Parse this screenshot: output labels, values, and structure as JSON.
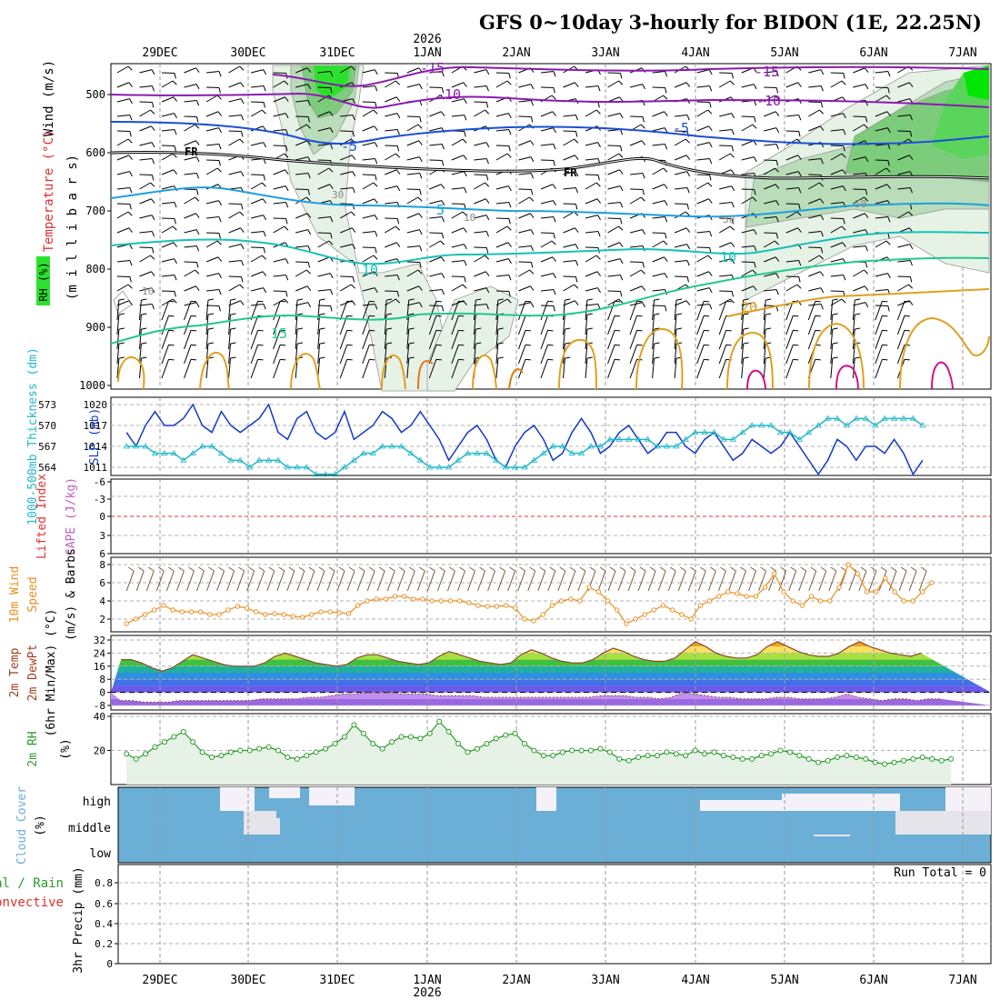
{
  "title": "GFS 0~10day 3-hourly for BIDON (1E, 22.25N)",
  "year_label": "2026",
  "date_labels": [
    "29DEC",
    "30DEC",
    "31DEC",
    "1JAN",
    "2JAN",
    "3JAN",
    "4JAN",
    "5JAN",
    "6JAN",
    "7JAN"
  ],
  "colors": {
    "temp_purple": "#8a1ab0",
    "temp_blue": "#1c4fd6",
    "temp_lightblue": "#1ca0e0",
    "temp_teal": "#18c0b8",
    "temp_green": "#20c890",
    "temp_orange": "#e0a020",
    "temp_darkorange": "#e07a10",
    "temp_magenta": "#d0108a",
    "rh_green": "#00e000",
    "slp_blue": "#1438c8",
    "thickness_cyan": "#22b8c8",
    "wind_orange": "#e89020",
    "rh2m_green": "#2a9a2a",
    "cloud_blue": "#6baed6",
    "lifted_red": "#e03030",
    "cape_violet": "#c060c0"
  },
  "panels": {
    "upper_air": {
      "axis_labels": {
        "wind": "Wind (m/s)",
        "temperature": "Temperature (°C)",
        "rh": "RH (%)",
        "millibars": "(m i l l i b a r s)"
      },
      "pressure_ticks": [
        "500",
        "600",
        "700",
        "800",
        "900",
        "1000"
      ],
      "contour_labels": [
        "-15",
        "-10",
        "-5",
        "FR",
        "5",
        "10",
        "15",
        "20",
        "-15",
        "-10",
        "-5",
        "FR",
        "10",
        "30",
        "50",
        "30",
        "10",
        "10"
      ]
    },
    "slp_thickness": {
      "thickness_label": "1000-500mb Thickness (dm)",
      "slp_label": "SLP (mb)",
      "thickness_ticks": [
        "573",
        "570",
        "567",
        "564"
      ],
      "slp_ticks": [
        "1020",
        "1017",
        "1014",
        "1011"
      ]
    },
    "cape_li": {
      "li_label": "Lifted Index",
      "cape_label": "CAPE (J/kg)",
      "ticks": [
        "-6",
        "-3",
        "0",
        "3",
        "6"
      ]
    },
    "wind10m": {
      "label_line1": "10m Wind",
      "label_line2": "Speed",
      "label_line3": "(m/s) & Barbs",
      "ticks": [
        "8",
        "6",
        "4",
        "2"
      ]
    },
    "temp2m": {
      "label_line1": "2m Temp",
      "label_line2": "2m DewPt",
      "label_line3": "(6hr Min/Max) (°C)",
      "ticks": [
        "32",
        "24",
        "16",
        "8",
        "0",
        "-8"
      ]
    },
    "rh2m": {
      "label_line1": "2m RH",
      "label_line2": "(%)",
      "ticks": [
        "40",
        "20"
      ]
    },
    "cloud": {
      "label_line1": "Cloud Cover",
      "label_line2": "(%)",
      "levels": [
        "high",
        "middle",
        "low"
      ]
    },
    "precip": {
      "label_line1": "Total / Rain",
      "label_line2": "Convective",
      "axis_label": "3hr Precip (mm)",
      "run_total": "Run Total = 0",
      "ticks": [
        "0.8",
        "0.6",
        "0.4",
        "0.2",
        "0"
      ]
    }
  },
  "chart_data": [
    {
      "type": "line",
      "name": "slp_thickness",
      "x_unit": "3-hourly steps (0 = 28DEC 12Z, 8 steps per day)",
      "series": [
        {
          "name": "SLP (mb)",
          "values": [
            1016,
            1014,
            1017,
            1019,
            1017,
            1017,
            1018,
            1020,
            1017,
            1016,
            1019,
            1017,
            1016,
            1017,
            1018,
            1020,
            1016,
            1015,
            1018,
            1019,
            1016,
            1015,
            1016,
            1019,
            1015,
            1016,
            1017,
            1019,
            1018,
            1016,
            1017,
            1019,
            1017,
            1015,
            1012,
            1014,
            1016,
            1017,
            1015,
            1012,
            1011,
            1014,
            1016,
            1017,
            1015,
            1012,
            1013,
            1016,
            1018,
            1016,
            1013,
            1014,
            1016,
            1017,
            1015,
            1013,
            1014,
            1016,
            1016,
            1014,
            1013,
            1015,
            1016,
            1014,
            1012,
            1013,
            1015,
            1014,
            1013,
            1014,
            1016,
            1014,
            1012,
            1010,
            1012,
            1015,
            1014,
            1012,
            1014,
            1014,
            1013,
            1015,
            1013,
            1010,
            1012
          ]
        },
        {
          "name": "1000-500mb Thickness (dm)",
          "values": [
            567,
            567,
            567,
            566,
            566,
            566,
            565,
            566,
            567,
            567,
            566,
            565,
            565,
            564,
            565,
            565,
            565,
            564,
            564,
            564,
            563,
            563,
            563,
            564,
            565,
            566,
            566,
            567,
            567,
            567,
            566,
            565,
            564,
            564,
            564,
            565,
            566,
            566,
            566,
            565,
            564,
            564,
            564,
            565,
            566,
            567,
            567,
            566,
            566,
            567,
            567,
            568,
            568,
            568,
            568,
            568,
            567,
            567,
            567,
            568,
            569,
            569,
            569,
            568,
            568,
            569,
            570,
            570,
            570,
            569,
            569,
            568,
            569,
            570,
            571,
            571,
            570,
            571,
            571,
            570,
            571,
            571,
            571,
            571,
            570
          ]
        }
      ]
    },
    {
      "type": "line",
      "name": "wind10m_speed",
      "series": [
        {
          "name": "10m Wind Speed (m/s)",
          "values": [
            1.5,
            2,
            2.5,
            3,
            3.5,
            3,
            2.8,
            2.8,
            2.8,
            2.5,
            2.5,
            3,
            3.4,
            3.2,
            2.8,
            2.5,
            2.6,
            2.5,
            2.3,
            2.2,
            2.5,
            2.8,
            2.8,
            2.7,
            2.6,
            3.5,
            4,
            4.2,
            4.2,
            4.5,
            4.5,
            4.2,
            4.2,
            4,
            4,
            4,
            4,
            3.8,
            3.5,
            3.4,
            3.4,
            3.5,
            3.2,
            2,
            1.8,
            2.5,
            3.5,
            4,
            4.2,
            4,
            5.5,
            5,
            4,
            3,
            1.5,
            2,
            2.5,
            3,
            3.5,
            3,
            2.5,
            2,
            3.5,
            4,
            4.5,
            5,
            4.8,
            4.5,
            4.5,
            5.5,
            7,
            5,
            4,
            3.5,
            4.5,
            4,
            4,
            5.5,
            8,
            7,
            5,
            5,
            6.5,
            5,
            4,
            4,
            5,
            6
          ]
        }
      ]
    },
    {
      "type": "area",
      "name": "temp2m",
      "series": [
        {
          "name": "2m Temp (°C)",
          "values": [
            20,
            20,
            18,
            15,
            13,
            15,
            19,
            23,
            21,
            19,
            17,
            16,
            16,
            16,
            18,
            22,
            24,
            22,
            20,
            18,
            17,
            16,
            17,
            21,
            23,
            23,
            21,
            19,
            18,
            17,
            18,
            22,
            25,
            23,
            21,
            19,
            18,
            17,
            18,
            23,
            26,
            24,
            21,
            19,
            18,
            18,
            20,
            24,
            27,
            25,
            22,
            20,
            19,
            19,
            21,
            26,
            31,
            28,
            24,
            22,
            21,
            21,
            23,
            28,
            31,
            28,
            25,
            23,
            22,
            22,
            24,
            28,
            31,
            28,
            26,
            24,
            23,
            22,
            24
          ]
        },
        {
          "name": "2m DewPt (°C)",
          "values": [
            -5,
            -5,
            -6,
            -6,
            -6,
            -5,
            -5,
            -5,
            -5,
            -5,
            -5,
            -5,
            -4,
            -4,
            -4,
            -4,
            -3,
            -3,
            -2,
            -1,
            -1,
            0,
            0,
            0,
            -1,
            -1,
            -1,
            -2,
            -2,
            -2,
            -2,
            -3,
            -3,
            -3,
            -3,
            -3,
            -3,
            -3,
            -3,
            -3,
            -3,
            -2,
            -2,
            -2,
            -3,
            -3,
            -4,
            -3,
            0,
            -1,
            -2,
            -3,
            -3,
            -4,
            -4,
            -4,
            -3,
            -3,
            -4,
            -4,
            -4,
            -3,
            -1,
            -3,
            -4,
            -5,
            -4,
            -4,
            -5,
            -4,
            -4
          ]
        }
      ]
    },
    {
      "type": "area",
      "name": "rh2m",
      "series": [
        {
          "name": "2m RH (%)",
          "values": [
            18,
            15,
            18,
            22,
            25,
            28,
            31,
            25,
            19,
            16,
            17,
            19,
            20,
            20,
            21,
            22,
            20,
            16,
            15,
            17,
            19,
            21,
            24,
            28,
            35,
            30,
            24,
            21,
            25,
            28,
            28,
            27,
            30,
            37,
            31,
            24,
            19,
            21,
            24,
            27,
            29,
            30,
            24,
            20,
            17,
            17,
            19,
            20,
            20,
            20,
            21,
            19,
            15,
            14,
            16,
            17,
            17,
            19,
            18,
            17,
            20,
            18,
            19,
            17,
            16,
            15,
            15,
            17,
            18,
            20,
            19,
            17,
            15,
            13,
            14,
            16,
            17,
            16,
            15,
            13,
            12,
            13,
            14,
            15,
            16,
            15,
            14,
            15
          ]
        }
      ]
    }
  ]
}
